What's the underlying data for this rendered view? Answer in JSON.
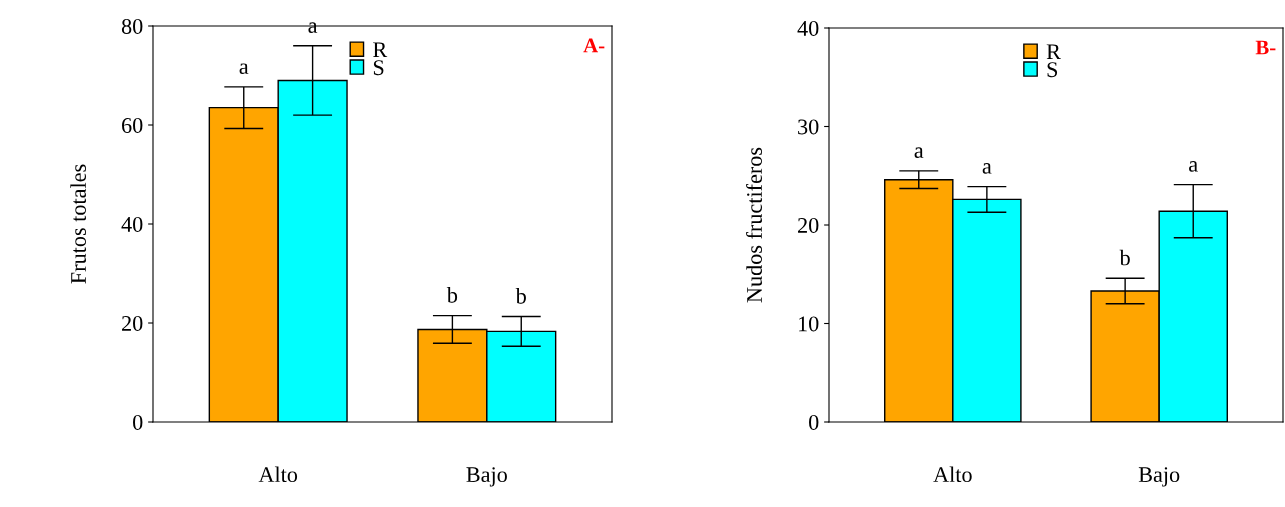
{
  "chart_data": [
    {
      "type": "bar",
      "ylabel": "Frutos totales",
      "categories": [
        "Alto",
        "Bajo"
      ],
      "ylim": [
        0,
        80
      ],
      "yticks": [
        0,
        20,
        40,
        60,
        80
      ],
      "legend": "top",
      "grid": false,
      "annotations": [
        "A-"
      ],
      "series": [
        {
          "name": "R",
          "color": "#ffa500",
          "values": [
            63.5,
            18.7
          ],
          "errors": [
            4.2,
            2.8
          ],
          "value_labels": [
            "a",
            "b"
          ]
        },
        {
          "name": "S",
          "color": "#00ffff",
          "values": [
            69.0,
            18.3
          ],
          "errors": [
            7.0,
            3.0
          ],
          "value_labels": [
            "a",
            "b"
          ]
        }
      ]
    },
    {
      "type": "bar",
      "ylabel": "Nudos fructiferos",
      "categories": [
        "Alto",
        "Bajo"
      ],
      "ylim": [
        0,
        40
      ],
      "yticks": [
        0,
        10,
        20,
        30,
        40
      ],
      "legend": "top",
      "grid": false,
      "annotations": [
        "B-"
      ],
      "series": [
        {
          "name": "R",
          "color": "#ffa500",
          "values": [
            24.6,
            13.3
          ],
          "errors": [
            0.9,
            1.3
          ],
          "value_labels": [
            "a",
            "b"
          ]
        },
        {
          "name": "S",
          "color": "#00ffff",
          "values": [
            22.6,
            21.4
          ],
          "errors": [
            1.3,
            2.7
          ],
          "value_labels": [
            "a",
            "a"
          ]
        }
      ]
    }
  ]
}
